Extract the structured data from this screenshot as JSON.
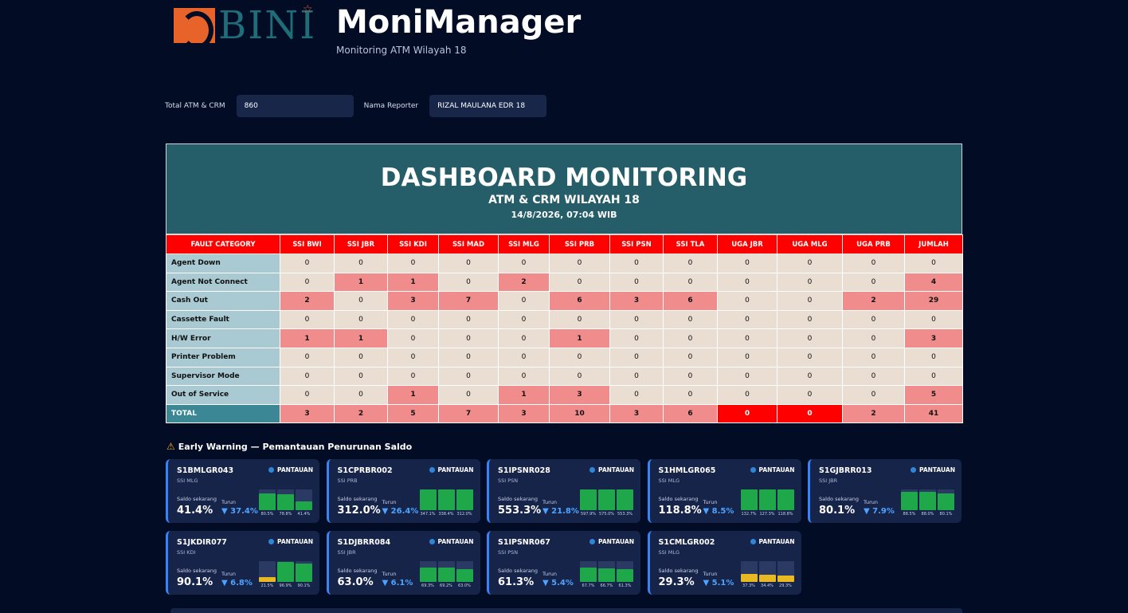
{
  "app": {
    "logo_text": "BINI",
    "title": "MoniManager",
    "subtitle": "Monitoring ATM Wilayah 18"
  },
  "form": {
    "total_label": "Total ATM & CRM",
    "total_value": "860",
    "reporter_label": "Nama Reporter",
    "reporter_value": "RIZAL MAULANA EDR 18"
  },
  "dashboard": {
    "title": "DASHBOARD MONITORING",
    "subtitle": "ATM & CRM WILAYAH 18",
    "date": "14/8/2026, 07:04 WIB",
    "columns": [
      "FAULT CATEGORY",
      "SSI BWI",
      "SSI JBR",
      "SSI KDI",
      "SSI MAD",
      "SSI MLG",
      "SSI PRB",
      "SSI PSN",
      "SSI TLA",
      "UGA JBR",
      "UGA MLG",
      "UGA PRB",
      "JUMLAH"
    ],
    "rows": [
      {
        "category": "Agent Down",
        "values": [
          0,
          0,
          0,
          0,
          0,
          0,
          0,
          0,
          0,
          0,
          0,
          0
        ]
      },
      {
        "category": "Agent Not Connect",
        "values": [
          0,
          1,
          1,
          0,
          2,
          0,
          0,
          0,
          0,
          0,
          0,
          4
        ]
      },
      {
        "category": "Cash Out",
        "values": [
          2,
          0,
          3,
          7,
          0,
          6,
          3,
          6,
          0,
          0,
          2,
          29
        ]
      },
      {
        "category": "Cassette Fault",
        "values": [
          0,
          0,
          0,
          0,
          0,
          0,
          0,
          0,
          0,
          0,
          0,
          0
        ]
      },
      {
        "category": "H/W Error",
        "values": [
          1,
          1,
          0,
          0,
          0,
          1,
          0,
          0,
          0,
          0,
          0,
          3
        ]
      },
      {
        "category": "Printer Problem",
        "values": [
          0,
          0,
          0,
          0,
          0,
          0,
          0,
          0,
          0,
          0,
          0,
          0
        ]
      },
      {
        "category": "Supervisor Mode",
        "values": [
          0,
          0,
          0,
          0,
          0,
          0,
          0,
          0,
          0,
          0,
          0,
          0
        ]
      },
      {
        "category": "Out of Service",
        "values": [
          0,
          0,
          1,
          0,
          1,
          3,
          0,
          0,
          0,
          0,
          0,
          5
        ]
      }
    ],
    "total": {
      "category": "TOTAL",
      "values": [
        3,
        2,
        5,
        7,
        3,
        10,
        3,
        6,
        0,
        0,
        2,
        41
      ]
    }
  },
  "early_warning": {
    "title": "Early Warning — Pemantauan Penurunan Saldo",
    "now_label": "Saldo sekarang",
    "drop_label": "Turun",
    "cards": [
      {
        "id": "S1BMLGR043",
        "group": "SSI MLG",
        "badge": "PANTAUAN",
        "now": "41.4%",
        "drop": "▼ 37.4%",
        "bars": [
          {
            "label": "80.5%",
            "value": 0.805,
            "color": "#1fa84a"
          },
          {
            "label": "78.8%",
            "value": 0.788,
            "color": "#1fa84a"
          },
          {
            "label": "41.4%",
            "value": 0.414,
            "color": "#1fa84a"
          }
        ]
      },
      {
        "id": "S1CPRBR002",
        "group": "SSI PRB",
        "badge": "PANTAUAN",
        "now": "312.0%",
        "drop": "▼ 26.4%",
        "bars": [
          {
            "label": "347.1%",
            "value": 1,
            "color": "#1fa84a"
          },
          {
            "label": "338.4%",
            "value": 1,
            "color": "#1fa84a"
          },
          {
            "label": "312.0%",
            "value": 1,
            "color": "#1fa84a"
          }
        ]
      },
      {
        "id": "S1IPSNR028",
        "group": "SSI PSN",
        "badge": "PANTAUAN",
        "now": "553.3%",
        "drop": "▼ 21.8%",
        "bars": [
          {
            "label": "597.9%",
            "value": 1,
            "color": "#1fa84a"
          },
          {
            "label": "575.0%",
            "value": 1,
            "color": "#1fa84a"
          },
          {
            "label": "553.3%",
            "value": 1,
            "color": "#1fa84a"
          }
        ]
      },
      {
        "id": "S1HMLGR065",
        "group": "SSI MLG",
        "badge": "PANTAUAN",
        "now": "118.8%",
        "drop": "▼ 8.5%",
        "bars": [
          {
            "label": "132.7%",
            "value": 1,
            "color": "#1fa84a"
          },
          {
            "label": "127.3%",
            "value": 1,
            "color": "#1fa84a"
          },
          {
            "label": "118.8%",
            "value": 1,
            "color": "#1fa84a"
          }
        ]
      },
      {
        "id": "S1GJBRR013",
        "group": "SSI JBR",
        "badge": "PANTAUAN",
        "now": "80.1%",
        "drop": "▼ 7.9%",
        "bars": [
          {
            "label": "88.5%",
            "value": 0.885,
            "color": "#1fa84a"
          },
          {
            "label": "88.0%",
            "value": 0.88,
            "color": "#1fa84a"
          },
          {
            "label": "80.1%",
            "value": 0.801,
            "color": "#1fa84a"
          }
        ]
      },
      {
        "id": "S1JKDIR077",
        "group": "SSI KDI",
        "badge": "PANTAUAN",
        "now": "90.1%",
        "drop": "▼ 6.8%",
        "bars": [
          {
            "label": "21.5%",
            "value": 0.215,
            "color": "#e8b923"
          },
          {
            "label": "96.9%",
            "value": 0.969,
            "color": "#1fa84a"
          },
          {
            "label": "90.1%",
            "value": 0.901,
            "color": "#1fa84a"
          }
        ]
      },
      {
        "id": "S1DJBRR084",
        "group": "SSI JBR",
        "badge": "PANTAUAN",
        "now": "63.0%",
        "drop": "▼ 6.1%",
        "bars": [
          {
            "label": "69.3%",
            "value": 0.693,
            "color": "#1fa84a"
          },
          {
            "label": "69.2%",
            "value": 0.692,
            "color": "#1fa84a"
          },
          {
            "label": "63.0%",
            "value": 0.63,
            "color": "#1fa84a"
          }
        ]
      },
      {
        "id": "S1IPSNR067",
        "group": "SSI PSN",
        "badge": "PANTAUAN",
        "now": "61.3%",
        "drop": "▼ 5.4%",
        "bars": [
          {
            "label": "67.7%",
            "value": 0.677,
            "color": "#1fa84a"
          },
          {
            "label": "66.7%",
            "value": 0.667,
            "color": "#1fa84a"
          },
          {
            "label": "61.3%",
            "value": 0.613,
            "color": "#1fa84a"
          }
        ]
      },
      {
        "id": "S1CMLGR002",
        "group": "SSI MLG",
        "badge": "PANTAUAN",
        "now": "29.3%",
        "drop": "▼ 5.1%",
        "bars": [
          {
            "label": "37.3%",
            "value": 0.373,
            "color": "#e8b923"
          },
          {
            "label": "34.4%",
            "value": 0.344,
            "color": "#e8b923"
          },
          {
            "label": "29.3%",
            "value": 0.293,
            "color": "#e8b923"
          }
        ]
      }
    ]
  },
  "colors": {
    "background": "#020c24",
    "card": "#17244a",
    "accent": "#3b82f6",
    "header_red": "#ff0000",
    "alert_cell": "#f08c8c",
    "dashboard_head": "#255d69"
  }
}
